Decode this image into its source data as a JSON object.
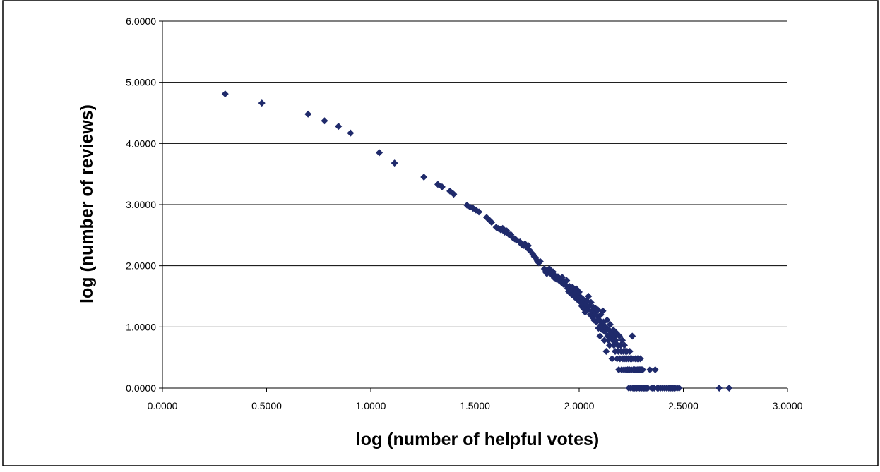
{
  "chart_data": {
    "type": "scatter",
    "title": "",
    "xlabel": "log (number of helpful votes)",
    "ylabel": "log (number of reviews)",
    "xlim": [
      0,
      3
    ],
    "ylim": [
      0,
      6
    ],
    "x_tick_labels": [
      "0.0000",
      "0.5000",
      "1.0000",
      "1.5000",
      "2.0000",
      "2.5000",
      "3.0000"
    ],
    "y_tick_labels": [
      "0.0000",
      "1.0000",
      "2.0000",
      "3.0000",
      "4.0000",
      "5.0000",
      "6.0000"
    ],
    "grid": "horizontal major gridlines",
    "legend": "none",
    "marker": "diamond",
    "marker_color": "#1f2a6b",
    "series": [
      {
        "points": [
          [
            0.301,
            4.81
          ],
          [
            0.477,
            4.66
          ],
          [
            0.699,
            4.48
          ],
          [
            0.778,
            4.37
          ],
          [
            0.845,
            4.28
          ],
          [
            0.903,
            4.17
          ],
          [
            1.041,
            3.85
          ],
          [
            1.114,
            3.68
          ],
          [
            1.255,
            3.45
          ],
          [
            1.322,
            3.33
          ],
          [
            1.342,
            3.29
          ],
          [
            1.38,
            3.22
          ],
          [
            1.398,
            3.17
          ],
          [
            1.462,
            2.99
          ],
          [
            1.477,
            2.96
          ],
          [
            1.491,
            2.94
          ],
          [
            1.505,
            2.91
          ],
          [
            1.519,
            2.88
          ],
          [
            1.556,
            2.79
          ],
          [
            1.568,
            2.75
          ],
          [
            1.58,
            2.71
          ],
          [
            1.602,
            2.63
          ],
          [
            1.613,
            2.61
          ],
          [
            1.623,
            2.59
          ],
          [
            1.633,
            2.61
          ],
          [
            1.643,
            2.55
          ],
          [
            1.653,
            2.57
          ],
          [
            1.663,
            2.51
          ],
          [
            1.672,
            2.51
          ],
          [
            1.681,
            2.46
          ],
          [
            1.69,
            2.44
          ],
          [
            1.699,
            2.42
          ],
          [
            1.716,
            2.39
          ],
          [
            1.724,
            2.35
          ],
          [
            1.732,
            2.33
          ],
          [
            1.74,
            2.36
          ],
          [
            1.748,
            2.3
          ],
          [
            1.756,
            2.33
          ],
          [
            1.763,
            2.25
          ],
          [
            1.778,
            2.19
          ],
          [
            1.785,
            2.15
          ],
          [
            1.792,
            2.13
          ],
          [
            1.799,
            2.08
          ],
          [
            1.806,
            2.05
          ],
          [
            1.813,
            2.07
          ],
          [
            1.833,
            1.95
          ],
          [
            1.839,
            1.9
          ],
          [
            1.845,
            1.87
          ],
          [
            1.851,
            1.91
          ],
          [
            1.857,
            1.95
          ],
          [
            1.863,
            1.88
          ],
          [
            1.869,
            1.85
          ],
          [
            1.875,
            1.9
          ],
          [
            1.881,
            1.8
          ],
          [
            1.886,
            1.83
          ],
          [
            1.892,
            1.78
          ],
          [
            1.898,
            1.82
          ],
          [
            1.903,
            1.76
          ],
          [
            1.908,
            1.79
          ],
          [
            1.914,
            1.73
          ],
          [
            1.919,
            1.81
          ],
          [
            1.924,
            1.7
          ],
          [
            1.929,
            1.74
          ],
          [
            1.934,
            1.69
          ],
          [
            1.94,
            1.76
          ],
          [
            1.945,
            1.63
          ],
          [
            1.949,
            1.58
          ],
          [
            1.954,
            1.66
          ],
          [
            1.959,
            1.59
          ],
          [
            1.964,
            1.53
          ],
          [
            1.968,
            1.65
          ],
          [
            1.973,
            1.61
          ],
          [
            1.978,
            1.49
          ],
          [
            1.982,
            1.56
          ],
          [
            1.987,
            1.62
          ],
          [
            1.991,
            1.45
          ],
          [
            1.996,
            1.52
          ],
          [
            2.0,
            1.57
          ],
          [
            2.004,
            1.41
          ],
          [
            2.009,
            1.48
          ],
          [
            2.013,
            1.34
          ],
          [
            2.017,
            1.46
          ],
          [
            2.021,
            1.3
          ],
          [
            2.025,
            1.38
          ],
          [
            2.029,
            1.24
          ],
          [
            2.033,
            1.36
          ],
          [
            2.037,
            1.43
          ],
          [
            2.041,
            1.28
          ],
          [
            2.045,
            1.5
          ],
          [
            2.049,
            1.34
          ],
          [
            2.053,
            1.2
          ],
          [
            2.057,
            1.4
          ],
          [
            2.061,
            1.26
          ],
          [
            2.064,
            1.16
          ],
          [
            2.068,
            1.32
          ],
          [
            2.072,
            1.11
          ],
          [
            2.076,
            1.23
          ],
          [
            2.079,
            1.3
          ],
          [
            2.083,
            1.08
          ],
          [
            2.086,
            1.18
          ],
          [
            2.09,
            1.28
          ],
          [
            2.093,
            0.98
          ],
          [
            2.097,
            1.11
          ],
          [
            2.1,
            0.85
          ],
          [
            2.104,
            1.2
          ],
          [
            2.107,
            1.04
          ],
          [
            2.111,
            0.95
          ],
          [
            2.114,
            1.26
          ],
          [
            2.117,
            1.08
          ],
          [
            2.121,
            0.78
          ],
          [
            2.124,
            0.92
          ],
          [
            2.127,
            1.0
          ],
          [
            2.13,
            0.6
          ],
          [
            2.134,
            1.11
          ],
          [
            2.137,
            0.85
          ],
          [
            2.14,
            0.78
          ],
          [
            2.143,
            0.95
          ],
          [
            2.146,
            0.7
          ],
          [
            2.149,
            1.04
          ],
          [
            2.152,
            0.85
          ],
          [
            2.155,
            0.9
          ],
          [
            2.158,
            0.48
          ],
          [
            2.161,
            0.78
          ],
          [
            2.164,
            0.95
          ],
          [
            2.167,
            0.7
          ],
          [
            2.17,
            0.85
          ],
          [
            2.173,
            0.6
          ],
          [
            2.176,
            0.78
          ],
          [
            2.179,
            0.9
          ],
          [
            2.182,
            0.48
          ],
          [
            2.185,
            0.7
          ],
          [
            2.188,
            0.6
          ],
          [
            2.19,
            0.3
          ],
          [
            2.193,
            0.85
          ],
          [
            2.196,
            0.48
          ],
          [
            2.199,
            0.7
          ],
          [
            2.201,
            0.6
          ],
          [
            2.204,
            0.3
          ],
          [
            2.207,
            0.78
          ],
          [
            2.21,
            0.48
          ],
          [
            2.212,
            0.6
          ],
          [
            2.215,
            0.3
          ],
          [
            2.217,
            0.7
          ],
          [
            2.22,
            0.48
          ],
          [
            2.223,
            0.6
          ],
          [
            2.225,
            0.3
          ],
          [
            2.228,
            0.48
          ],
          [
            2.23,
            0.6
          ],
          [
            2.233,
            0.3
          ],
          [
            2.236,
            0.48
          ],
          [
            2.238,
            0.0
          ],
          [
            2.241,
            0.3
          ],
          [
            2.243,
            0.6
          ],
          [
            2.246,
            0.48
          ],
          [
            2.248,
            0.0
          ],
          [
            2.25,
            0.3
          ],
          [
            2.253,
            0.48
          ],
          [
            2.255,
            0.85
          ],
          [
            2.258,
            0.0
          ],
          [
            2.26,
            0.3
          ],
          [
            2.262,
            0.48
          ],
          [
            2.265,
            0.0
          ],
          [
            2.267,
            0.3
          ],
          [
            2.27,
            0.48
          ],
          [
            2.272,
            0.0
          ],
          [
            2.274,
            0.3
          ],
          [
            2.276,
            0.0
          ],
          [
            2.279,
            0.48
          ],
          [
            2.281,
            0.3
          ],
          [
            2.283,
            0.0
          ],
          [
            2.286,
            0.48
          ],
          [
            2.288,
            0.3
          ],
          [
            2.29,
            0.0
          ],
          [
            2.292,
            0.3
          ],
          [
            2.294,
            0.48
          ],
          [
            2.297,
            0.0
          ],
          [
            2.299,
            0.3
          ],
          [
            2.301,
            0.0
          ],
          [
            2.305,
            0.3
          ],
          [
            2.31,
            0.0
          ],
          [
            2.315,
            0.0
          ],
          [
            2.32,
            0.0
          ],
          [
            2.325,
            0.0
          ],
          [
            2.33,
            0.0
          ],
          [
            2.34,
            0.3
          ],
          [
            2.35,
            0.0
          ],
          [
            2.36,
            0.0
          ],
          [
            2.365,
            0.3
          ],
          [
            2.375,
            0.0
          ],
          [
            2.38,
            0.0
          ],
          [
            2.39,
            0.0
          ],
          [
            2.4,
            0.0
          ],
          [
            2.41,
            0.0
          ],
          [
            2.42,
            0.0
          ],
          [
            2.43,
            0.0
          ],
          [
            2.44,
            0.0
          ],
          [
            2.45,
            0.0
          ],
          [
            2.46,
            0.0
          ],
          [
            2.47,
            0.0
          ],
          [
            2.48,
            0.0
          ],
          [
            2.672,
            0.0
          ],
          [
            2.72,
            0.0
          ]
        ]
      }
    ]
  }
}
